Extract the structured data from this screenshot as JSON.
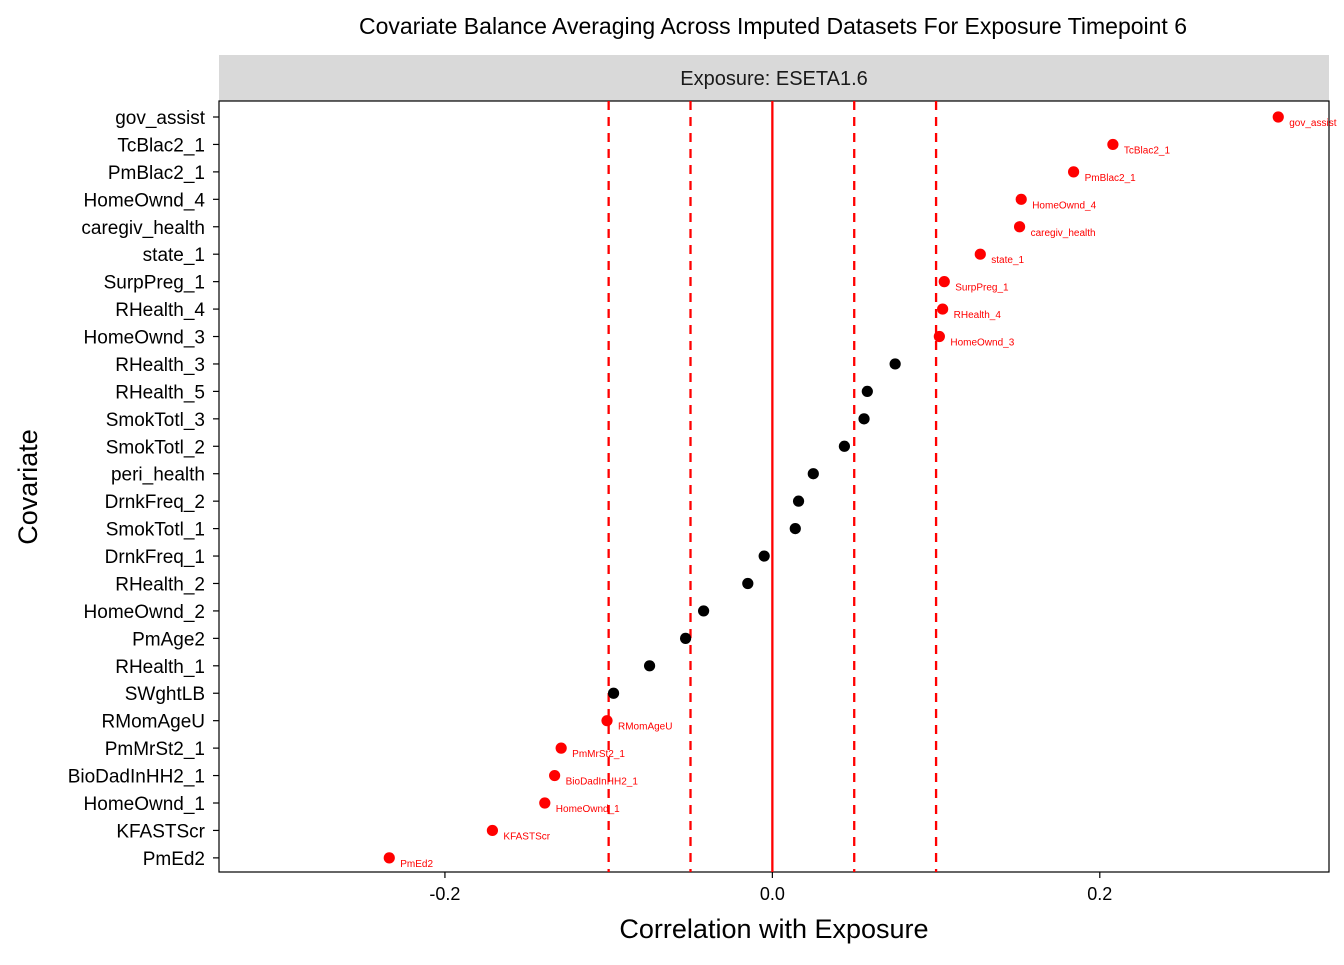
{
  "chart_data": {
    "type": "scatter",
    "title": "Covariate Balance Averaging Across Imputed Datasets For Exposure Timepoint 6",
    "facet_label": "Exposure: ESETA1.6",
    "xlabel": "Correlation with Exposure",
    "ylabel": "Covariate",
    "xlim": [
      -0.338,
      0.34
    ],
    "x_ticks": [
      -0.2,
      0.0,
      0.2
    ],
    "x_tick_labels": [
      "-0.2",
      "0.0",
      "0.2"
    ],
    "grid": false,
    "legend": "none",
    "colors": {
      "balanced": "#000000",
      "imbalanced": "#ff0000",
      "reference_lines": "#ff0000",
      "strip": "#d9d9d9"
    },
    "reference_lines": {
      "solid": [
        0.0
      ],
      "dashed": [
        -0.1,
        -0.05,
        0.05,
        0.1
      ]
    },
    "points": [
      {
        "covariate": "gov_assist",
        "value": 0.309,
        "imbalanced": true,
        "label": "gov_assist"
      },
      {
        "covariate": "TcBlac2_1",
        "value": 0.208,
        "imbalanced": true,
        "label": "TcBlac2_1"
      },
      {
        "covariate": "PmBlac2_1",
        "value": 0.184,
        "imbalanced": true,
        "label": "PmBlac2_1"
      },
      {
        "covariate": "HomeOwnd_4",
        "value": 0.152,
        "imbalanced": true,
        "label": "HomeOwnd_4"
      },
      {
        "covariate": "caregiv_health",
        "value": 0.151,
        "imbalanced": true,
        "label": "caregiv_health"
      },
      {
        "covariate": "state_1",
        "value": 0.127,
        "imbalanced": true,
        "label": "state_1"
      },
      {
        "covariate": "SurpPreg_1",
        "value": 0.105,
        "imbalanced": true,
        "label": "SurpPreg_1"
      },
      {
        "covariate": "RHealth_4",
        "value": 0.104,
        "imbalanced": true,
        "label": "RHealth_4"
      },
      {
        "covariate": "HomeOwnd_3",
        "value": 0.102,
        "imbalanced": true,
        "label": "HomeOwnd_3"
      },
      {
        "covariate": "RHealth_3",
        "value": 0.075,
        "imbalanced": false,
        "label": ""
      },
      {
        "covariate": "RHealth_5",
        "value": 0.058,
        "imbalanced": false,
        "label": ""
      },
      {
        "covariate": "SmokTotl_3",
        "value": 0.056,
        "imbalanced": false,
        "label": ""
      },
      {
        "covariate": "SmokTotl_2",
        "value": 0.044,
        "imbalanced": false,
        "label": ""
      },
      {
        "covariate": "peri_health",
        "value": 0.025,
        "imbalanced": false,
        "label": ""
      },
      {
        "covariate": "DrnkFreq_2",
        "value": 0.016,
        "imbalanced": false,
        "label": ""
      },
      {
        "covariate": "SmokTotl_1",
        "value": 0.014,
        "imbalanced": false,
        "label": ""
      },
      {
        "covariate": "DrnkFreq_1",
        "value": -0.005,
        "imbalanced": false,
        "label": ""
      },
      {
        "covariate": "RHealth_2",
        "value": -0.015,
        "imbalanced": false,
        "label": ""
      },
      {
        "covariate": "HomeOwnd_2",
        "value": -0.042,
        "imbalanced": false,
        "label": ""
      },
      {
        "covariate": "PmAge2",
        "value": -0.053,
        "imbalanced": false,
        "label": ""
      },
      {
        "covariate": "RHealth_1",
        "value": -0.075,
        "imbalanced": false,
        "label": ""
      },
      {
        "covariate": "SWghtLB",
        "value": -0.097,
        "imbalanced": false,
        "label": ""
      },
      {
        "covariate": "RMomAgeU",
        "value": -0.101,
        "imbalanced": true,
        "label": "RMomAgeU"
      },
      {
        "covariate": "PmMrSt2_1",
        "value": -0.129,
        "imbalanced": true,
        "label": "PmMrSt2_1"
      },
      {
        "covariate": "BioDadInHH2_1",
        "value": -0.133,
        "imbalanced": true,
        "label": "BioDadInHH2_1"
      },
      {
        "covariate": "HomeOwnd_1",
        "value": -0.139,
        "imbalanced": true,
        "label": "HomeOwnd_1"
      },
      {
        "covariate": "KFASTScr",
        "value": -0.171,
        "imbalanced": true,
        "label": "KFASTScr"
      },
      {
        "covariate": "PmEd2",
        "value": -0.234,
        "imbalanced": true,
        "label": "PmEd2"
      }
    ]
  }
}
